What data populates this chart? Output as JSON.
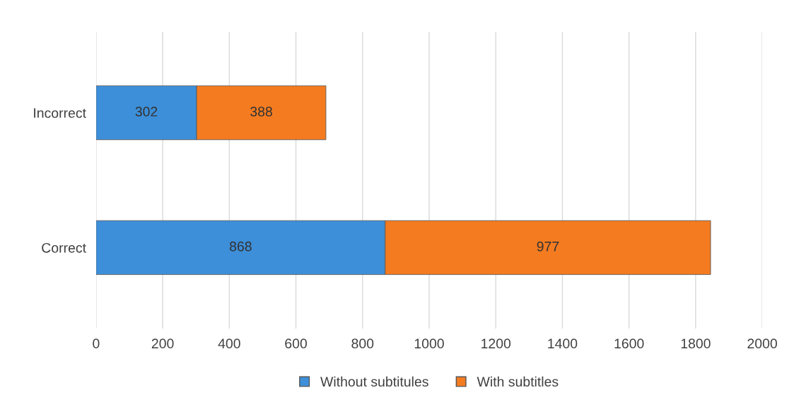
{
  "chart_data": {
    "type": "bar",
    "orientation": "horizontal",
    "stacked": true,
    "categories": [
      "Incorrect",
      "Correct"
    ],
    "series": [
      {
        "name": "Without subtitules",
        "color": "#3d8fd9",
        "values": [
          302,
          868
        ]
      },
      {
        "name": "With subtitles",
        "color": "#f47b20",
        "values": [
          388,
          977
        ]
      }
    ],
    "xlim": [
      0,
      2000
    ],
    "xticks": [
      0,
      200,
      400,
      600,
      800,
      1000,
      1200,
      1400,
      1600,
      1800,
      2000
    ],
    "grid": "x",
    "legend": "bottom",
    "data_labels": true
  }
}
